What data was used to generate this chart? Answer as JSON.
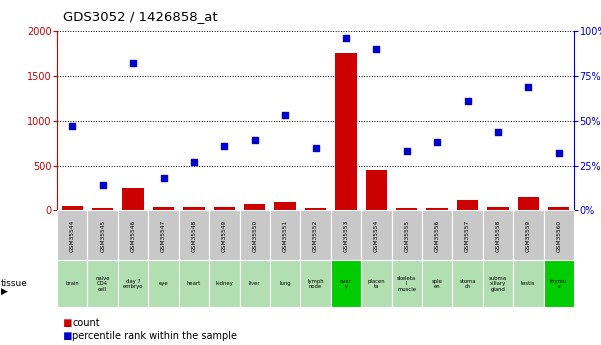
{
  "title": "GDS3052 / 1426858_at",
  "samples": [
    "GSM35544",
    "GSM35545",
    "GSM35546",
    "GSM35547",
    "GSM35548",
    "GSM35549",
    "GSM35550",
    "GSM35551",
    "GSM35552",
    "GSM35553",
    "GSM35554",
    "GSM35555",
    "GSM35556",
    "GSM35557",
    "GSM35558",
    "GSM35559",
    "GSM35560"
  ],
  "tissues": [
    "brain",
    "naive\nCD4\ncell",
    "day 7\nembryо",
    "eye",
    "heart",
    "kidney",
    "liver",
    "lung",
    "lymph\nnode",
    "ovar\ny",
    "placen\nta",
    "skeleta\nl\nmuscle",
    "sple\nen",
    "stoma\nch",
    "subma\nxillary\ngland",
    "testis",
    "thymu\ns"
  ],
  "tissue_colors": [
    "#b2dfb2",
    "#b2dfb2",
    "#b2dfb2",
    "#b2dfb2",
    "#b2dfb2",
    "#b2dfb2",
    "#b2dfb2",
    "#b2dfb2",
    "#b2dfb2",
    "#00cc00",
    "#b2dfb2",
    "#b2dfb2",
    "#b2dfb2",
    "#b2dfb2",
    "#b2dfb2",
    "#b2dfb2",
    "#00cc00"
  ],
  "counts": [
    50,
    30,
    250,
    40,
    40,
    40,
    70,
    90,
    30,
    1750,
    450,
    30,
    30,
    120,
    40,
    150,
    40
  ],
  "percentile_pct": [
    47,
    14,
    82,
    18,
    27,
    36,
    39,
    53,
    35,
    96,
    90,
    33,
    38,
    61,
    44,
    69,
    32
  ],
  "count_color": "#cc0000",
  "percentile_color": "#0000cc",
  "ylim_left": [
    0,
    2000
  ],
  "yticks_left": [
    0,
    500,
    1000,
    1500,
    2000
  ],
  "yticks_right": [
    0,
    25,
    50,
    75,
    100
  ],
  "sample_cell_color": "#c8c8c8",
  "sample_cell_border": "#ffffff"
}
